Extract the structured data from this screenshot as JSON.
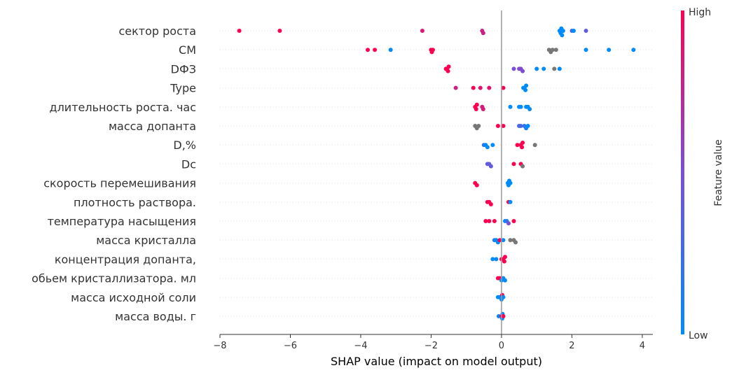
{
  "chart_data": {
    "type": "scatter",
    "subtype": "shap-beeswarm",
    "xlabel": "SHAP value (impact on model output)",
    "xlim": [
      -8.0,
      4.3
    ],
    "xticks": [
      -8,
      -6,
      -4,
      -2,
      0,
      2,
      4
    ],
    "colorbar": {
      "title": "Feature value",
      "high_label": "High",
      "low_label": "Low",
      "high_color": "#ff0051",
      "low_color": "#008bfb",
      "missing_color": "#777777"
    },
    "features": [
      {
        "name": "сектор роста",
        "points": [
          [
            -7.45,
            1.0
          ],
          [
            -6.3,
            1.0
          ],
          [
            -2.25,
            0.85
          ],
          [
            -0.55,
            0.8
          ],
          [
            -0.52,
            0.8
          ],
          [
            1.65,
            0.0
          ],
          [
            1.7,
            0.0
          ],
          [
            1.75,
            0.0
          ],
          [
            1.68,
            0.0
          ],
          [
            1.72,
            0.0
          ],
          [
            2.05,
            0.0
          ],
          [
            2.0,
            0.3
          ],
          [
            2.4,
            0.4
          ]
        ]
      },
      {
        "name": "СМ",
        "points": [
          [
            -3.8,
            1.0
          ],
          [
            -3.6,
            1.0
          ],
          [
            -3.15,
            0.0
          ],
          [
            -1.95,
            1.0
          ],
          [
            -1.98,
            1.0
          ],
          [
            -2.0,
            1.0
          ],
          [
            1.4,
            null
          ],
          [
            1.45,
            null
          ],
          [
            1.35,
            null
          ],
          [
            1.55,
            null
          ],
          [
            2.4,
            0.0
          ],
          [
            3.05,
            0.0
          ],
          [
            3.75,
            0.0
          ]
        ]
      },
      {
        "name": "DФЗ",
        "points": [
          [
            -1.55,
            1.0
          ],
          [
            -1.5,
            1.0
          ],
          [
            -1.58,
            1.0
          ],
          [
            -1.52,
            1.0
          ],
          [
            0.35,
            0.5
          ],
          [
            0.5,
            0.5
          ],
          [
            0.55,
            0.55
          ],
          [
            0.6,
            0.5
          ],
          [
            1.0,
            0.0
          ],
          [
            1.2,
            0.0
          ],
          [
            1.5,
            null
          ],
          [
            1.65,
            0.0
          ]
        ]
      },
      {
        "name": "Type",
        "points": [
          [
            -1.3,
            0.8
          ],
          [
            -0.8,
            1.0
          ],
          [
            -0.6,
            0.9
          ],
          [
            -0.35,
            0.9
          ],
          [
            0.05,
            1.0
          ],
          [
            0.65,
            0.0
          ],
          [
            0.68,
            0.0
          ],
          [
            0.62,
            0.0
          ],
          [
            0.7,
            0.0
          ]
        ]
      },
      {
        "name": "длительность роста. час",
        "points": [
          [
            -0.75,
            1.0
          ],
          [
            -0.72,
            1.0
          ],
          [
            -0.7,
            1.0
          ],
          [
            -0.55,
            0.85
          ],
          [
            -0.52,
            0.85
          ],
          [
            0.25,
            0.0
          ],
          [
            0.5,
            0.0
          ],
          [
            0.55,
            0.0
          ],
          [
            0.7,
            0.0
          ],
          [
            0.75,
            0.0
          ],
          [
            0.8,
            0.0
          ]
        ]
      },
      {
        "name": "масса допанта",
        "points": [
          [
            -0.75,
            null
          ],
          [
            -0.7,
            null
          ],
          [
            -0.65,
            null
          ],
          [
            -0.1,
            1.0
          ],
          [
            0.05,
            1.0
          ],
          [
            0.5,
            0.3
          ],
          [
            0.55,
            0.3
          ],
          [
            0.65,
            0.2
          ],
          [
            0.7,
            0.1
          ],
          [
            0.75,
            0.0
          ]
        ]
      },
      {
        "name": "D,%",
        "points": [
          [
            -0.5,
            0.2
          ],
          [
            -0.45,
            0.0
          ],
          [
            -0.4,
            0.0
          ],
          [
            -0.25,
            0.0
          ],
          [
            0.45,
            1.0
          ],
          [
            0.55,
            1.0
          ],
          [
            0.6,
            1.0
          ],
          [
            0.58,
            1.0
          ],
          [
            0.95,
            null
          ]
        ]
      },
      {
        "name": "Dc",
        "points": [
          [
            -0.4,
            0.4
          ],
          [
            -0.35,
            0.4
          ],
          [
            -0.3,
            0.4
          ],
          [
            0.35,
            1.0
          ],
          [
            0.55,
            1.0
          ],
          [
            0.6,
            null
          ]
        ]
      },
      {
        "name": "скорость перемешивания",
        "points": [
          [
            -0.75,
            1.0
          ],
          [
            -0.7,
            1.0
          ],
          [
            0.2,
            0.0
          ],
          [
            0.22,
            0.0
          ],
          [
            0.25,
            0.0
          ],
          [
            0.18,
            0.0
          ]
        ]
      },
      {
        "name": "плотность раствора.",
        "points": [
          [
            -0.4,
            1.0
          ],
          [
            -0.35,
            1.0
          ],
          [
            -0.3,
            1.0
          ],
          [
            0.2,
            1.0
          ],
          [
            0.25,
            0.0
          ]
        ]
      },
      {
        "name": "температура насыщения",
        "points": [
          [
            -0.45,
            1.0
          ],
          [
            -0.35,
            1.0
          ],
          [
            -0.2,
            1.0
          ],
          [
            0.15,
            0.2
          ],
          [
            0.2,
            0.5
          ],
          [
            0.35,
            1.0
          ],
          [
            0.1,
            0.0
          ]
        ]
      },
      {
        "name": "масса кристалла",
        "points": [
          [
            -0.2,
            0.1
          ],
          [
            -0.1,
            0.0
          ],
          [
            -0.05,
            1.0
          ],
          [
            0.05,
            0.0
          ],
          [
            0.25,
            null
          ],
          [
            0.35,
            null
          ],
          [
            0.4,
            null
          ],
          [
            -0.15,
            0.0
          ]
        ]
      },
      {
        "name": "концентрация допанта,",
        "points": [
          [
            -0.25,
            0.0
          ],
          [
            -0.15,
            0.0
          ],
          [
            0.0,
            1.0
          ],
          [
            0.05,
            1.0
          ],
          [
            0.1,
            1.0
          ],
          [
            0.08,
            1.0
          ]
        ]
      },
      {
        "name": "обьем кристаллизатора. мл",
        "points": [
          [
            -0.1,
            1.0
          ],
          [
            -0.05,
            1.0
          ],
          [
            0.0,
            0.0
          ],
          [
            0.05,
            0.0
          ],
          [
            0.1,
            0.0
          ]
        ]
      },
      {
        "name": "масса исходной соли",
        "points": [
          [
            -0.1,
            0.0
          ],
          [
            -0.05,
            0.0
          ],
          [
            0.0,
            0.0
          ],
          [
            0.02,
            1.0
          ],
          [
            0.05,
            0.0
          ]
        ]
      },
      {
        "name": "масса воды. г",
        "points": [
          [
            -0.08,
            0.0
          ],
          [
            0.0,
            1.0
          ],
          [
            0.02,
            0.0
          ],
          [
            0.05,
            1.0
          ],
          [
            0.03,
            0.0
          ]
        ]
      }
    ]
  }
}
